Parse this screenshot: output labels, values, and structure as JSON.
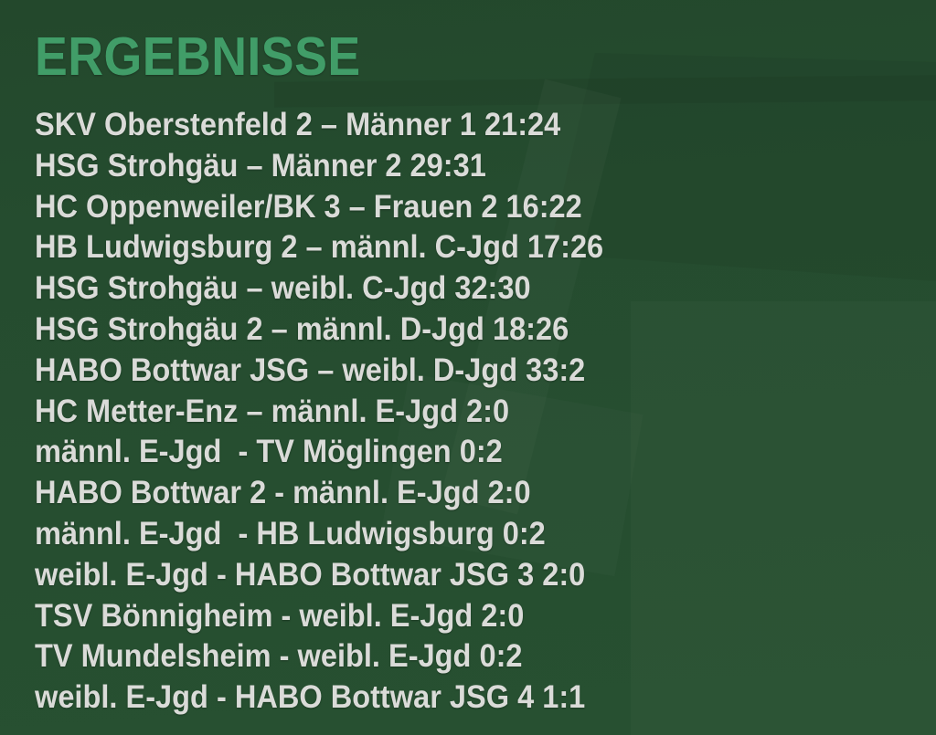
{
  "poster": {
    "title": "ERGEBNISSE"
  },
  "results": [
    "SKV Oberstenfeld 2 – Männer 1 21:24",
    "HSG Strohgäu – Männer 2 29:31",
    "HC Oppenweiler/BK 3 – Frauen 2 16:22",
    "HB Ludwigsburg 2 – männl. C-Jgd 17:26",
    "HSG Strohgäu – weibl. C-Jgd 32:30",
    "HSG Strohgäu 2 – männl. D-Jgd 18:26",
    "HABO Bottwar JSG – weibl. D-Jgd 33:2",
    "HC Metter-Enz – männl. E-Jgd 2:0",
    "männl. E-Jgd  - TV Möglingen 0:2",
    "HABO Bottwar 2 - männl. E-Jgd 2:0",
    "männl. E-Jgd  - HB Ludwigsburg 0:2",
    "weibl. E-Jgd - HABO Bottwar JSG 3 2:0",
    "TSV Bönnigheim - weibl. E-Jgd 2:0",
    "TV Mundelsheim - weibl. E-Jgd 0:2",
    "weibl. E-Jgd - HABO Bottwar JSG 4 1:1"
  ],
  "colors": {
    "background": "#254c2f",
    "background_top": "#23482c",
    "background_bottom": "#275031",
    "title": "#419d68",
    "text": "#dadbd8"
  }
}
